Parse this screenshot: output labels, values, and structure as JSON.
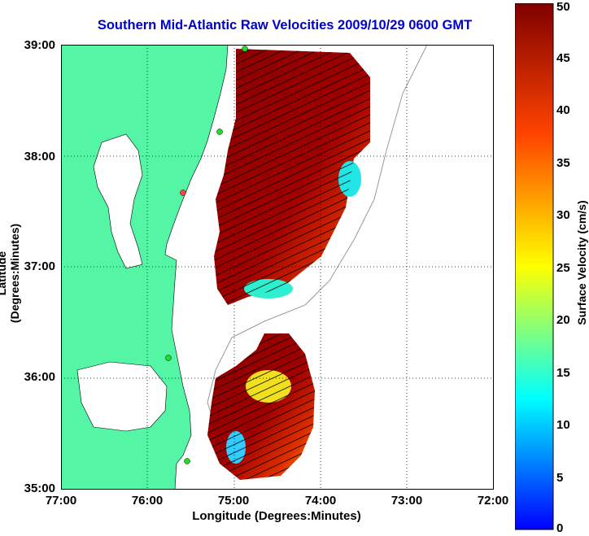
{
  "title": "Southern Mid-Atlantic Raw Velocities 2009/10/29 0600 GMT",
  "xlabel": "Longitude (Degrees:Minutes)",
  "ylabel": "Latitude (Degrees:Minutes)",
  "colorbar": {
    "label": "Surface Velocity (cm/s)",
    "ticks": [
      "0",
      "5",
      "10",
      "15",
      "20",
      "25",
      "30",
      "35",
      "40",
      "45",
      "50"
    ],
    "range": [
      0,
      50
    ],
    "colormap": "jet"
  },
  "axes": {
    "x_ticks": [
      "77:00",
      "76:00",
      "75:00",
      "74:00",
      "73:00",
      "72:00"
    ],
    "y_ticks": [
      "39:00",
      "38:00",
      "37:00",
      "36:00",
      "35:00"
    ],
    "lon_range": [
      -77,
      -72
    ],
    "lat_range": [
      35,
      39
    ],
    "grid": "dotted"
  },
  "colors": {
    "land": "#55f5a6",
    "ocean": "#ffffff",
    "title": "#0000cc",
    "station": "#22dd22"
  }
}
